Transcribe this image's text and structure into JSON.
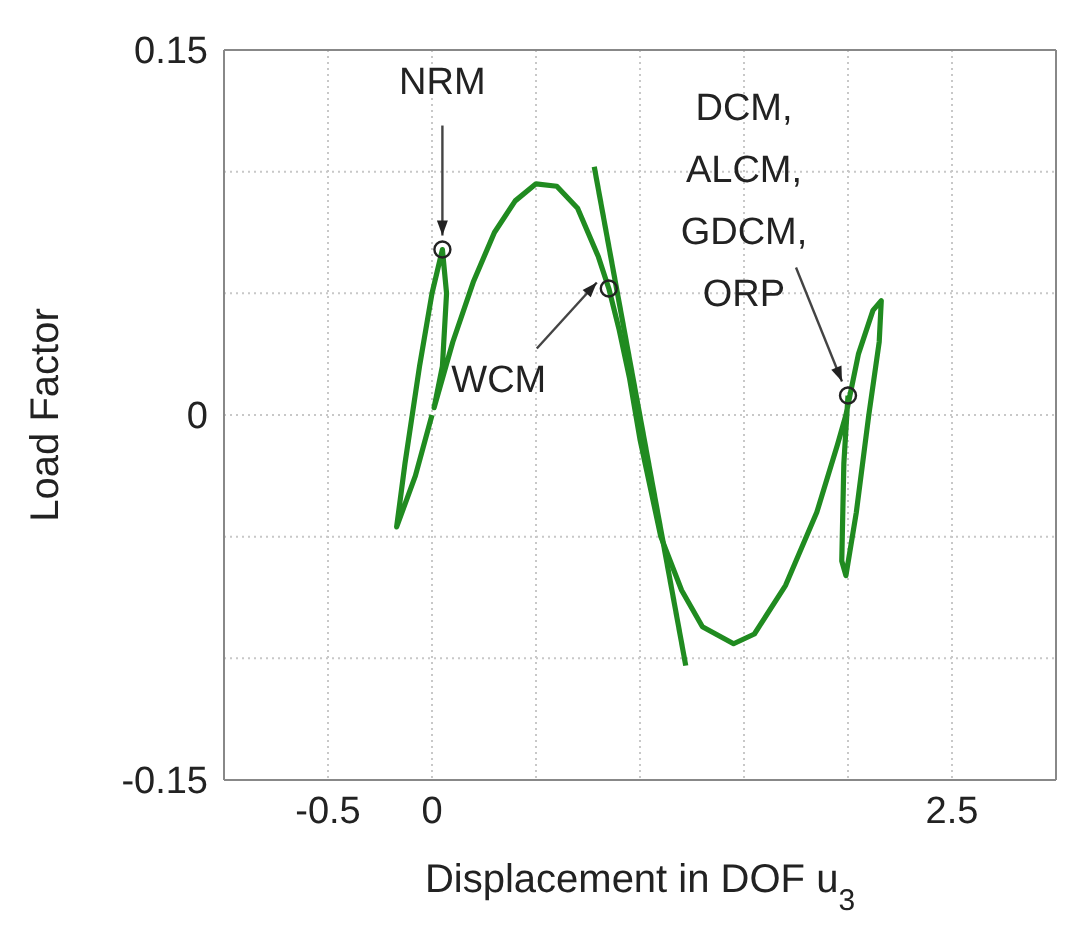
{
  "chart_data": {
    "type": "line",
    "xlabel": "Displacement in DOF u$_{3}$",
    "ylabel": "Load Factor",
    "xlim": [
      -1,
      3
    ],
    "ylim": [
      -0.15,
      0.15
    ],
    "xticks": [
      -0.5,
      0,
      {
        "value": 0.5,
        "label": null
      },
      {
        "value": 1,
        "label": null
      },
      {
        "value": 1.5,
        "label": null
      },
      {
        "value": 2,
        "label": null
      },
      2.5
    ],
    "yticks": [
      -0.15,
      {
        "value": -0.1,
        "label": null
      },
      {
        "value": -0.05,
        "label": null
      },
      0,
      {
        "value": 0.05,
        "label": null
      },
      {
        "value": 0.1,
        "label": null
      },
      0.15
    ],
    "grid": true,
    "line_style": "solid",
    "marker": "none",
    "series": [
      {
        "color": "#208b20",
        "x": [
          0.0,
          -0.08,
          -0.17,
          -0.13,
          -0.06,
          0.0,
          0.05,
          0.07,
          0.05,
          0.01,
          0.1,
          0.2,
          0.3,
          0.4,
          0.5,
          0.6,
          0.7,
          0.8,
          0.85,
          0.9,
          0.95,
          1.0,
          1.05,
          1.1,
          1.2,
          1.3,
          1.45,
          1.55,
          1.7,
          1.85,
          1.95,
          1.99,
          2.05,
          2.12,
          2.16,
          2.15,
          2.1,
          2.04,
          1.99,
          1.97,
          1.98,
          2.0
        ],
        "values": [
          0.0,
          -0.025,
          -0.046,
          -0.02,
          0.02,
          0.05,
          0.068,
          0.05,
          0.02,
          0.003,
          0.03,
          0.055,
          0.075,
          0.088,
          0.095,
          0.094,
          0.085,
          0.065,
          0.052,
          0.035,
          0.015,
          -0.01,
          -0.03,
          -0.05,
          -0.072,
          -0.087,
          -0.094,
          -0.09,
          -0.07,
          -0.04,
          -0.012,
          0.0,
          0.025,
          0.043,
          0.047,
          0.03,
          0.0,
          -0.04,
          -0.066,
          -0.06,
          -0.02,
          0.008
        ]
      },
      {
        "color": "#208b20",
        "x": [
          0.78,
          1.22
        ],
        "values": [
          0.102,
          -0.103
        ]
      }
    ],
    "annotations": [
      {
        "text": "NRM",
        "x": 0.05,
        "y": 0.068
      },
      {
        "text": "WCM",
        "x": 0.85,
        "y": 0.052
      },
      {
        "text": "DCM,\nALCM,\nGDCM,\nORP",
        "x": 2.0,
        "y": 0.008
      }
    ]
  }
}
